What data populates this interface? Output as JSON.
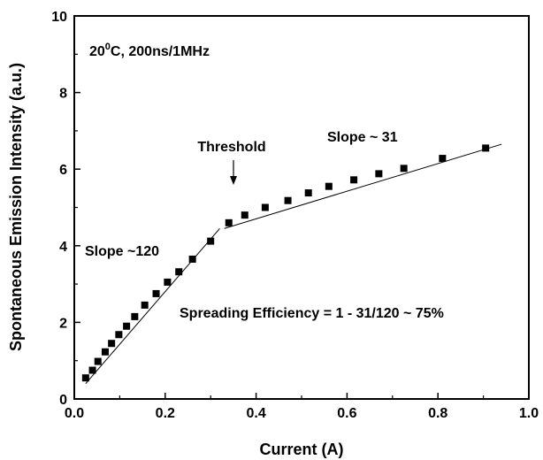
{
  "chart_data": {
    "type": "scatter",
    "xlabel": "Current (A)",
    "ylabel": "Spontaneous Emission Intensity (a.u.)",
    "xlim": [
      0.0,
      1.0
    ],
    "ylim": [
      0,
      10
    ],
    "x_ticks": [
      "0.0",
      "0.2",
      "0.4",
      "0.6",
      "0.8",
      "1.0"
    ],
    "y_ticks": [
      "0",
      "2",
      "4",
      "6",
      "8",
      "10"
    ],
    "grid": false,
    "series": [
      {
        "marker": "square",
        "color": "#000000",
        "x": [
          0.025,
          0.04,
          0.052,
          0.068,
          0.082,
          0.098,
          0.115,
          0.133,
          0.155,
          0.18,
          0.205,
          0.23,
          0.26,
          0.3,
          0.34,
          0.375,
          0.42,
          0.47,
          0.515,
          0.56,
          0.615,
          0.67,
          0.725,
          0.81,
          0.905
        ],
        "y": [
          0.55,
          0.75,
          0.98,
          1.23,
          1.45,
          1.68,
          1.9,
          2.15,
          2.45,
          2.75,
          3.05,
          3.32,
          3.65,
          4.12,
          4.6,
          4.8,
          5.0,
          5.18,
          5.38,
          5.55,
          5.72,
          5.88,
          6.02,
          6.28,
          6.55
        ]
      }
    ],
    "fit_lines": [
      {
        "x": [
          0.025,
          0.32
        ],
        "y": [
          0.4,
          4.45
        ]
      },
      {
        "x": [
          0.33,
          0.94
        ],
        "y": [
          4.45,
          6.65
        ]
      }
    ],
    "annotations": {
      "conditions": "20",
      "conditions_sup": "0",
      "conditions_rest": "C, 200ns/1MHz",
      "threshold": "Threshold",
      "slope_high": "Slope ~ 31",
      "slope_low": "Slope ~120",
      "efficiency": "Spreading Efficiency = 1 - 31/120 ~ 75%"
    }
  }
}
